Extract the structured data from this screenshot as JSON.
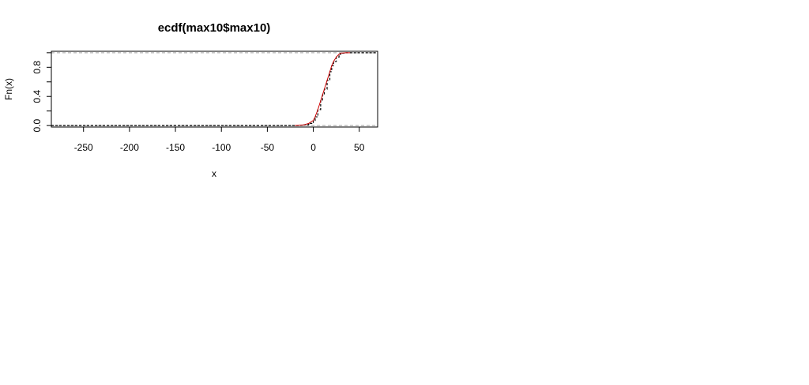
{
  "chart_data": {
    "type": "line",
    "title": "ecdf(max10$max10)",
    "xlabel": "x",
    "ylabel": "Fn(x)",
    "xlim": [
      -285,
      70
    ],
    "ylim": [
      -0.02,
      1.02
    ],
    "x_ticks": [
      -250,
      -200,
      -150,
      -100,
      -50,
      0,
      50
    ],
    "x_tick_labels": [
      "-250",
      "-200",
      "-150",
      "-100",
      "-50",
      "0",
      "50"
    ],
    "y_ticks": [
      0.0,
      0.2,
      0.4,
      0.6,
      0.8,
      1.0
    ],
    "y_tick_labels": [
      "0.0",
      "0.4",
      "0.8"
    ],
    "y_tick_labels_at": [
      0.0,
      0.4,
      0.8
    ],
    "reference_lines_y": [
      0,
      1
    ],
    "reference_line_color": "#a0a0a0",
    "series": [
      {
        "color": "#000000",
        "style": "dashed-step",
        "x": [
          -285,
          -20,
          -15,
          -10,
          -5,
          0,
          2,
          5,
          8,
          10,
          12,
          15,
          18,
          20,
          22,
          25,
          28,
          30,
          35,
          40,
          70
        ],
        "y": [
          0.0,
          0.0,
          0.005,
          0.01,
          0.03,
          0.07,
          0.12,
          0.22,
          0.34,
          0.42,
          0.5,
          0.62,
          0.74,
          0.82,
          0.88,
          0.94,
          0.98,
          0.995,
          1.0,
          1.0,
          1.0
        ]
      },
      {
        "color": "#cc0000",
        "style": "solid",
        "x": [
          -20,
          -15,
          -10,
          -5,
          0,
          2,
          5,
          8,
          10,
          12,
          15,
          18,
          20,
          22,
          25,
          28,
          30,
          35,
          40
        ],
        "y": [
          0.0,
          0.005,
          0.01,
          0.03,
          0.07,
          0.12,
          0.22,
          0.34,
          0.42,
          0.5,
          0.62,
          0.74,
          0.82,
          0.88,
          0.94,
          0.98,
          0.995,
          1.0,
          1.0
        ]
      }
    ],
    "grid": false,
    "legend": "none"
  }
}
